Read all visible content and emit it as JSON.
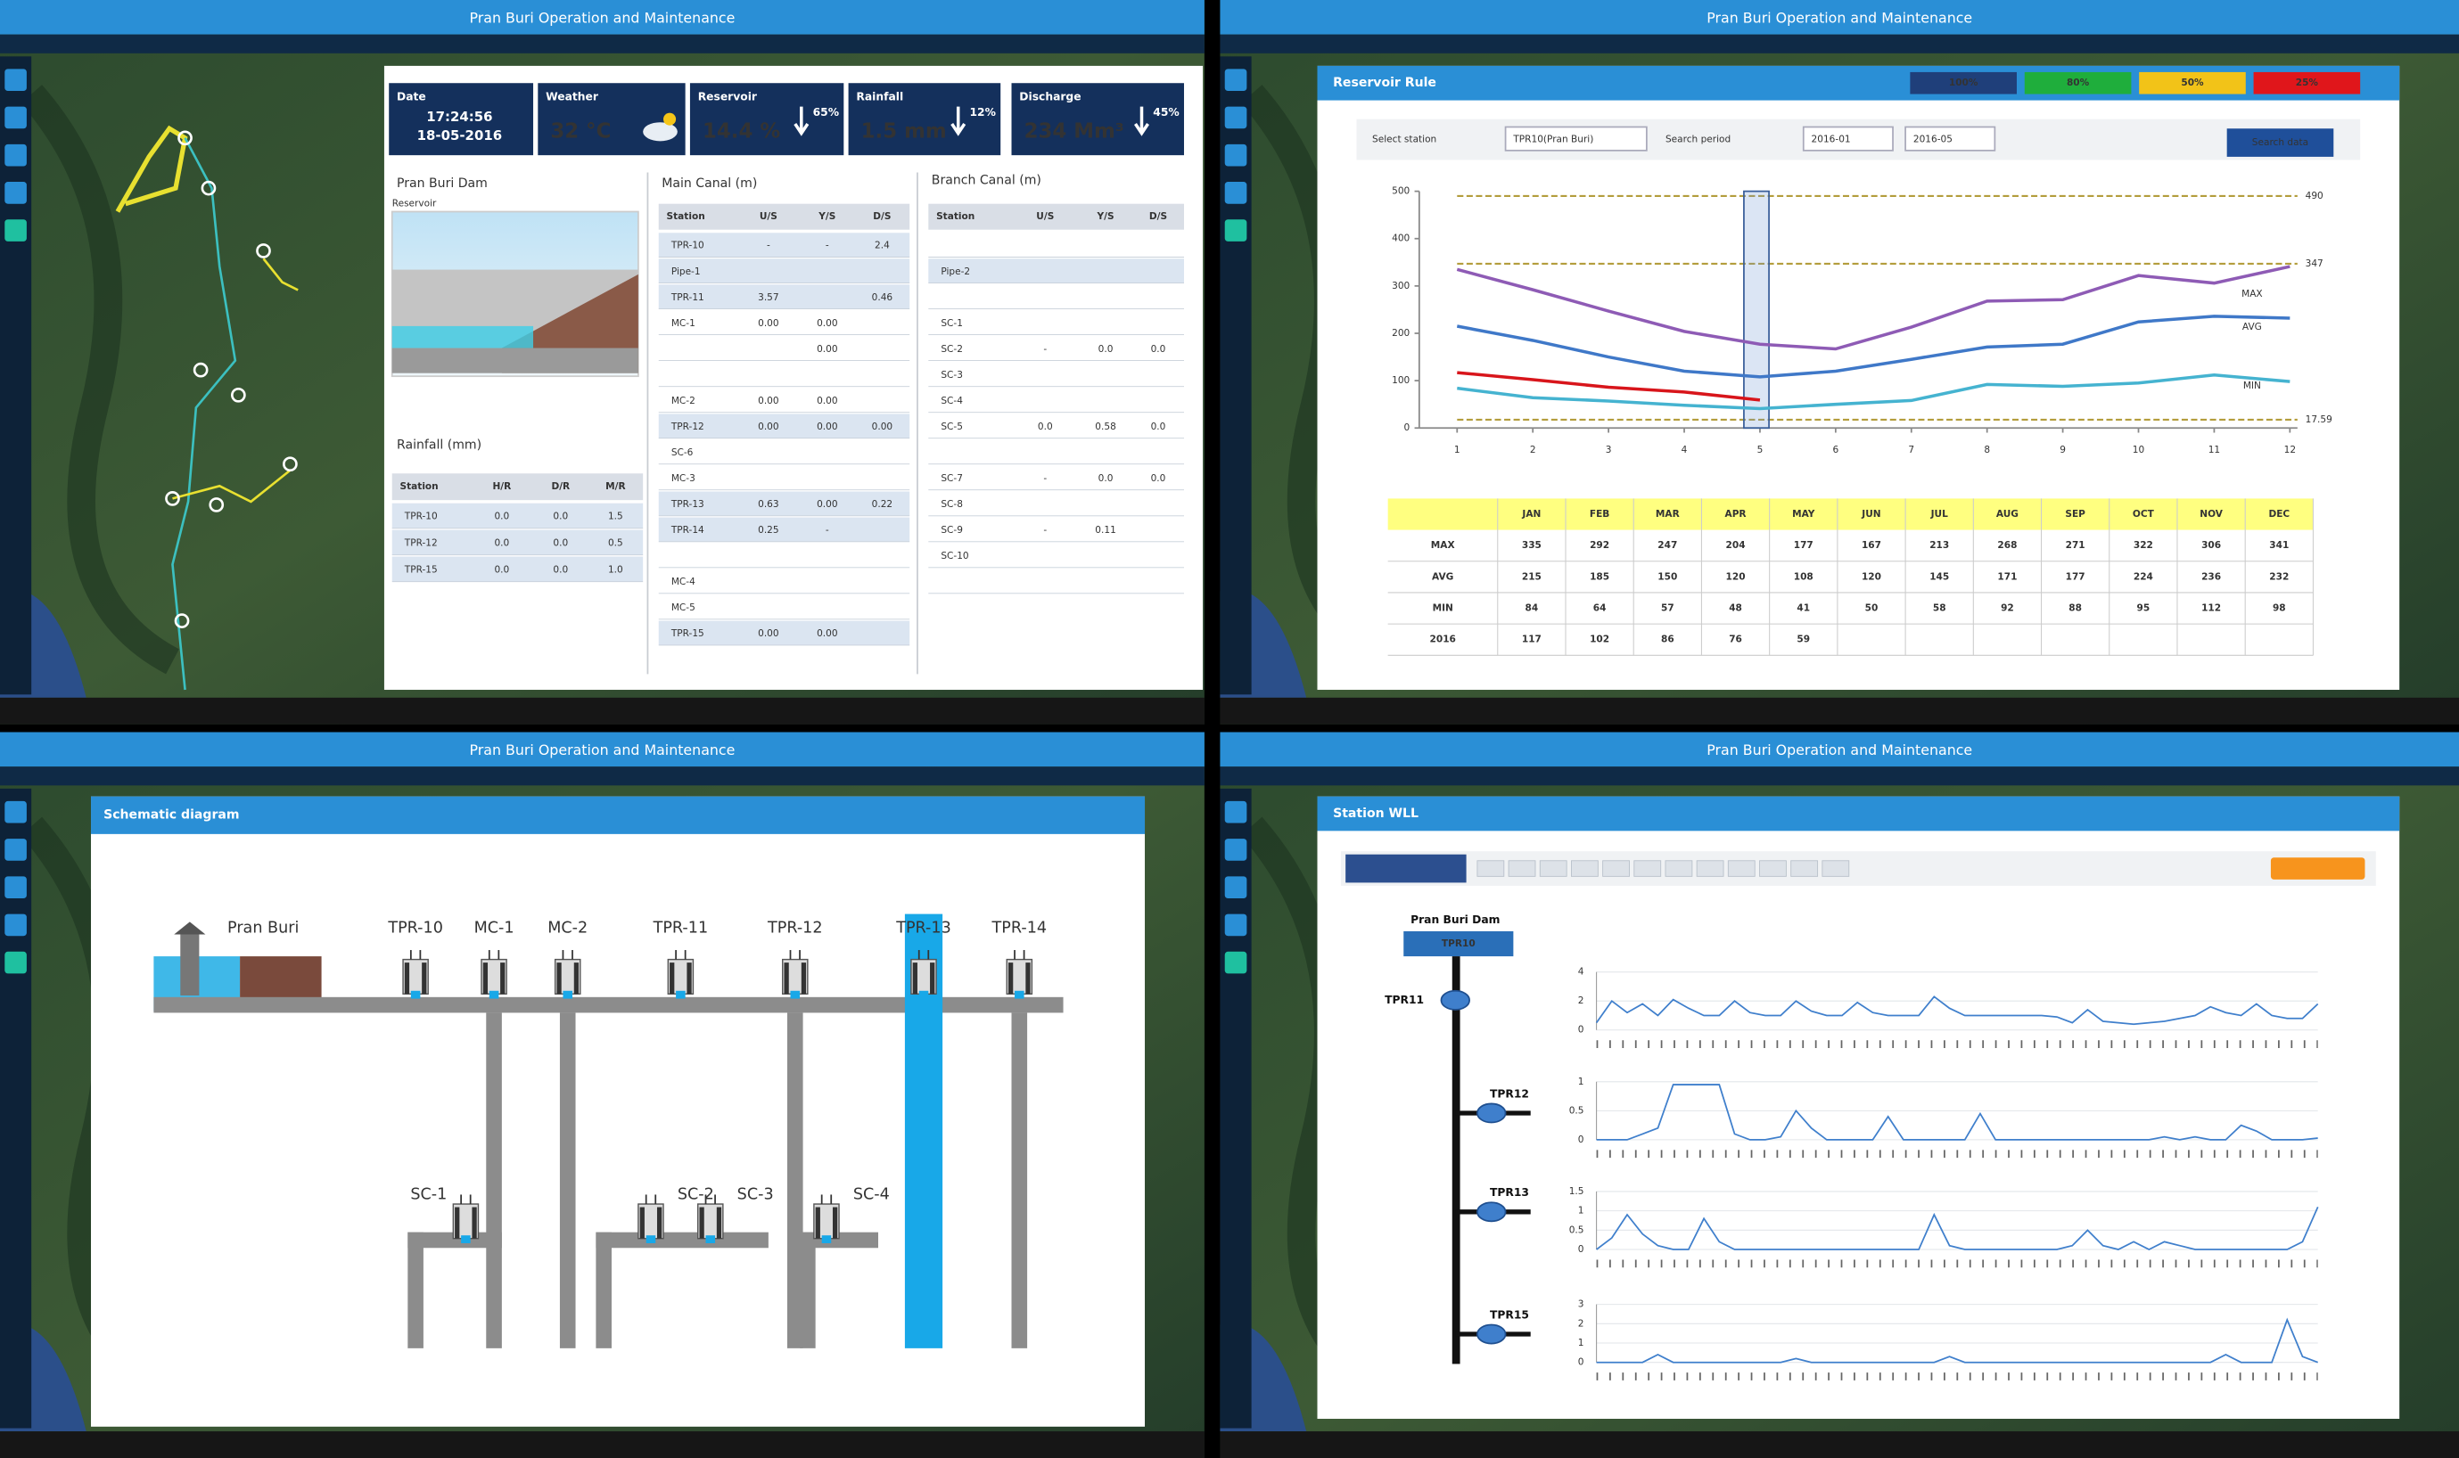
{
  "app_title": "Pran Buri Operation and Maintenance",
  "dashboard": {
    "status": [
      {
        "label": "Date",
        "lines": [
          "17:24:56",
          "18-05-2016"
        ]
      },
      {
        "label": "Weather",
        "value": "32 °C",
        "value_color": "#ffffff"
      },
      {
        "label": "Reservoir",
        "value": "14.4 %",
        "value_color": "#ff2d7a",
        "change": "65%"
      },
      {
        "label": "Rainfall",
        "value": "1.5 mm",
        "value_color": "#2fe07a",
        "change": "12%"
      },
      {
        "label": "Discharge",
        "value": "234 Mm³",
        "value_color": "#ff2d7a",
        "change": "45%"
      }
    ],
    "dam_title": "Pran Buri Dam",
    "dam_caption": "Reservoir",
    "rainfall": {
      "title": "Rainfall (mm)",
      "header": [
        "Station",
        "H/R",
        "D/R",
        "M/R"
      ],
      "rows": [
        [
          "TPR-10",
          "0.0",
          "0.0",
          "1.5"
        ],
        [
          "TPR-12",
          "0.0",
          "0.0",
          "0.5"
        ],
        [
          "TPR-15",
          "0.0",
          "0.0",
          "1.0"
        ]
      ]
    },
    "main_canal": {
      "title": "Main Canal (m)",
      "header": [
        "Station",
        "U/S",
        "Y/S",
        "D/S"
      ],
      "rows": [
        [
          "TPR-10",
          "-",
          "-",
          "2.4"
        ],
        [
          "Pipe-1",
          null,
          null,
          null
        ],
        [
          "TPR-11",
          "3.57",
          null,
          "0.46"
        ],
        [
          "MC-1",
          "0.00",
          "0.00",
          null
        ],
        [
          null,
          null,
          "0.00",
          null
        ],
        [
          null,
          null,
          null,
          null
        ],
        [
          "MC-2",
          "0.00",
          "0.00",
          null
        ],
        [
          "TPR-12",
          "0.00",
          "0.00",
          "0.00"
        ],
        [
          "SC-6",
          null,
          null,
          null
        ],
        [
          "MC-3",
          null,
          null,
          null
        ],
        [
          "TPR-13",
          "0.63",
          "0.00",
          "0.22"
        ],
        [
          "TPR-14",
          "0.25",
          "-",
          null
        ],
        [
          null,
          null,
          null,
          null
        ],
        [
          "MC-4",
          null,
          null,
          null
        ],
        [
          "MC-5",
          null,
          null,
          null
        ],
        [
          "TPR-15",
          "0.00",
          "0.00",
          null
        ]
      ]
    },
    "branch_canal": {
      "title": "Branch Canal (m)",
      "header": [
        "Station",
        "U/S",
        "Y/S",
        "D/S"
      ],
      "rows": [
        [
          null,
          null,
          null,
          null
        ],
        [
          "Pipe-2",
          null,
          null,
          null
        ],
        [
          null,
          null,
          null,
          null
        ],
        [
          "SC-1",
          null,
          null,
          null
        ],
        [
          "SC-2",
          "-",
          "0.0",
          "0.0"
        ],
        [
          "SC-3",
          null,
          null,
          null
        ],
        [
          "SC-4",
          null,
          null,
          null
        ],
        [
          "SC-5",
          "0.0",
          "0.58",
          "0.0"
        ],
        [
          null,
          null,
          null,
          null
        ],
        [
          "SC-7",
          "-",
          "0.0",
          "0.0"
        ],
        [
          "SC-8",
          null,
          null,
          null
        ],
        [
          "SC-9",
          "-",
          "0.11",
          null
        ],
        [
          "SC-10",
          null,
          null,
          null
        ],
        [
          null,
          null,
          null,
          null
        ]
      ]
    }
  },
  "reservoir_rule": {
    "window_title": "Reservoir Rule",
    "legend": [
      {
        "label": "100%",
        "color": "#1f3f7a"
      },
      {
        "label": "80%",
        "color": "#1fae3c"
      },
      {
        "label": "50%",
        "color": "#f2c318"
      },
      {
        "label": "25%",
        "color": "#e0161b"
      }
    ],
    "form": {
      "station_label": "Select station",
      "station": "TPR10(Pran Buri)",
      "period_label": "Search period",
      "from": "2016-01",
      "to": "2016-05",
      "button": "Search data"
    },
    "chart_data": {
      "type": "line",
      "x": [
        1,
        2,
        3,
        4,
        5,
        6,
        7,
        8,
        9,
        10,
        11,
        12
      ],
      "xlim": [
        0.5,
        12.1
      ],
      "xticks": [
        1,
        2,
        3,
        4,
        5,
        6,
        7,
        8,
        9,
        10,
        11,
        12
      ],
      "ylim": [
        0,
        500
      ],
      "yticks": [
        0,
        100,
        200,
        300,
        400,
        500
      ],
      "reference_lines": [
        490,
        347,
        17.59
      ],
      "reference_color": "#b39d3c",
      "series": [
        {
          "name": "MAX",
          "color": "#8e5bb5",
          "values": [
            335,
            292,
            247,
            204,
            177,
            167,
            213,
            268,
            271,
            322,
            306,
            341
          ]
        },
        {
          "name": "AVG",
          "color": "#3f78c8",
          "values": [
            215,
            185,
            150,
            120,
            108,
            120,
            145,
            171,
            177,
            224,
            236,
            232
          ]
        },
        {
          "name": "MIN",
          "color": "#45b3d0",
          "values": [
            84,
            64,
            57,
            48,
            41,
            50,
            58,
            92,
            88,
            95,
            112,
            98
          ]
        },
        {
          "name": "2016",
          "color": "#d8151b",
          "values": [
            117,
            102,
            86,
            76,
            59,
            null,
            null,
            null,
            null,
            null,
            null,
            null
          ]
        }
      ]
    },
    "table": {
      "months": [
        "JAN",
        "FEB",
        "MAR",
        "APR",
        "MAY",
        "JUN",
        "JUL",
        "AUG",
        "SEP",
        "OCT",
        "NOV",
        "DEC"
      ]
    }
  },
  "schematic": {
    "window_title": "Schematic diagram",
    "reservoir": "Pran Buri",
    "gates": [
      "TPR-10",
      "MC-1",
      "MC-2",
      "TPR-11",
      "TPR-12",
      "TPR-13",
      "TPR-14"
    ],
    "branches": [
      "SC-1",
      "SC-2",
      "SC-3",
      "SC-4"
    ]
  },
  "station_wll": {
    "window_title": "Station WLL",
    "dam": "Pran Buri Dam",
    "dam_station": "TPR10",
    "line_color": "#3f7fcc",
    "charts": [
      {
        "station": "TPR11",
        "type": "line",
        "ylim": [
          0,
          4
        ],
        "yticks": [
          0,
          2,
          4
        ],
        "values": [
          0.5,
          2,
          1.2,
          1.8,
          1,
          2.1,
          1.5,
          1,
          1,
          2,
          1.2,
          1,
          1,
          2,
          1.3,
          1,
          1,
          1.9,
          1.2,
          1,
          1,
          1,
          2.3,
          1.5,
          1,
          1,
          1,
          1,
          1,
          1,
          0.9,
          0.5,
          1.4,
          0.6,
          0.5,
          0.4,
          0.5,
          0.6,
          0.8,
          1,
          1.6,
          1.2,
          1,
          1.8,
          1,
          0.8,
          0.8,
          1.8
        ]
      },
      {
        "station": "TPR12",
        "type": "line",
        "ylim": [
          0,
          1
        ],
        "yticks": [
          0,
          0.5,
          1
        ],
        "values": [
          0,
          0,
          0,
          0.1,
          0.2,
          0.95,
          0.95,
          0.95,
          0.95,
          0.1,
          0,
          0,
          0.05,
          0.5,
          0.2,
          0,
          0,
          0,
          0,
          0.4,
          0,
          0,
          0,
          0,
          0,
          0.45,
          0,
          0,
          0,
          0,
          0,
          0,
          0,
          0,
          0,
          0,
          0,
          0.05,
          0,
          0.05,
          0,
          0,
          0.25,
          0.15,
          0,
          0,
          0,
          0.03
        ]
      },
      {
        "station": "TPR13",
        "type": "line",
        "ylim": [
          0,
          1.5
        ],
        "yticks": [
          0,
          0.5,
          1,
          1.5
        ],
        "values": [
          0,
          0.3,
          0.9,
          0.4,
          0.1,
          0,
          0,
          0.8,
          0.2,
          0,
          0,
          0,
          0,
          0,
          0,
          0,
          0,
          0,
          0,
          0,
          0,
          0,
          0.9,
          0.1,
          0,
          0,
          0,
          0,
          0,
          0,
          0,
          0.1,
          0.5,
          0.1,
          0,
          0.2,
          0,
          0.2,
          0.1,
          0,
          0,
          0,
          0,
          0,
          0,
          0,
          0.2,
          1.1
        ]
      },
      {
        "station": "TPR15",
        "type": "line",
        "ylim": [
          0,
          3
        ],
        "yticks": [
          0,
          1,
          2,
          3
        ],
        "values": [
          0,
          0,
          0,
          0,
          0.4,
          0,
          0,
          0,
          0,
          0,
          0,
          0,
          0,
          0.2,
          0,
          0,
          0,
          0,
          0,
          0,
          0,
          0,
          0,
          0.3,
          0,
          0,
          0,
          0,
          0,
          0,
          0,
          0,
          0,
          0,
          0,
          0,
          0,
          0,
          0,
          0,
          0,
          0.4,
          0,
          0,
          0,
          2.2,
          0.3,
          0
        ]
      }
    ]
  }
}
